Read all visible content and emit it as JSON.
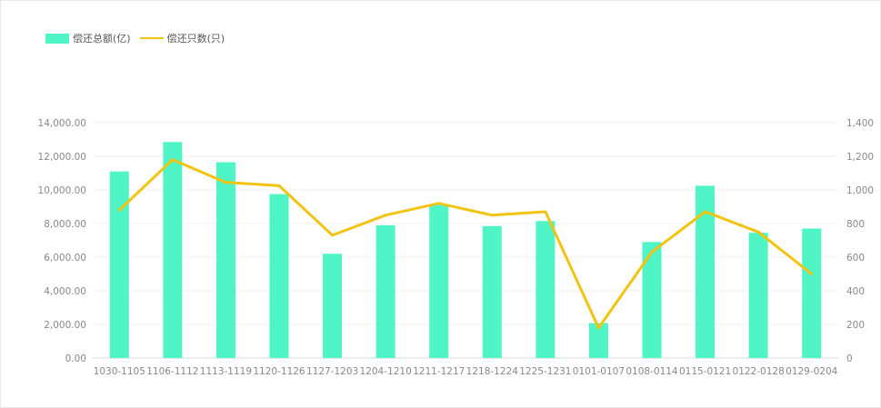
{
  "chart_data": {
    "type": "bar",
    "categories": [
      "1030-1105",
      "1106-1112",
      "1113-1119",
      "1120-1126",
      "1127-1203",
      "1204-1210",
      "1211-1217",
      "1218-1224",
      "1225-1231",
      "0101-0107",
      "0108-0114",
      "0115-0121",
      "0122-0128",
      "0129-0204"
    ],
    "series": [
      {
        "name": "偿还总额(亿)",
        "type": "bar",
        "axis": "left",
        "color": "#4ff5c6",
        "values": [
          11100,
          12850,
          11650,
          9750,
          6200,
          7900,
          9100,
          7850,
          8150,
          2080,
          6900,
          10250,
          7450,
          7700
        ]
      },
      {
        "name": "偿还只数(只)",
        "type": "line",
        "axis": "right",
        "color": "#f2c311",
        "values": [
          880,
          1180,
          1045,
          1025,
          730,
          850,
          920,
          850,
          870,
          180,
          630,
          870,
          750,
          500
        ]
      }
    ],
    "y_left": {
      "ylim": [
        0,
        14000
      ],
      "ticks": [
        "0.00",
        "2,000.00",
        "4,000.00",
        "6,000.00",
        "8,000.00",
        "10,000.00",
        "12,000.00",
        "14,000.00"
      ]
    },
    "y_right": {
      "ylim": [
        0,
        1400
      ],
      "ticks": [
        "0",
        "200",
        "400",
        "600",
        "800",
        "1,000",
        "1,200",
        "1,400"
      ]
    },
    "grid": true,
    "legend_position": "top-left"
  }
}
